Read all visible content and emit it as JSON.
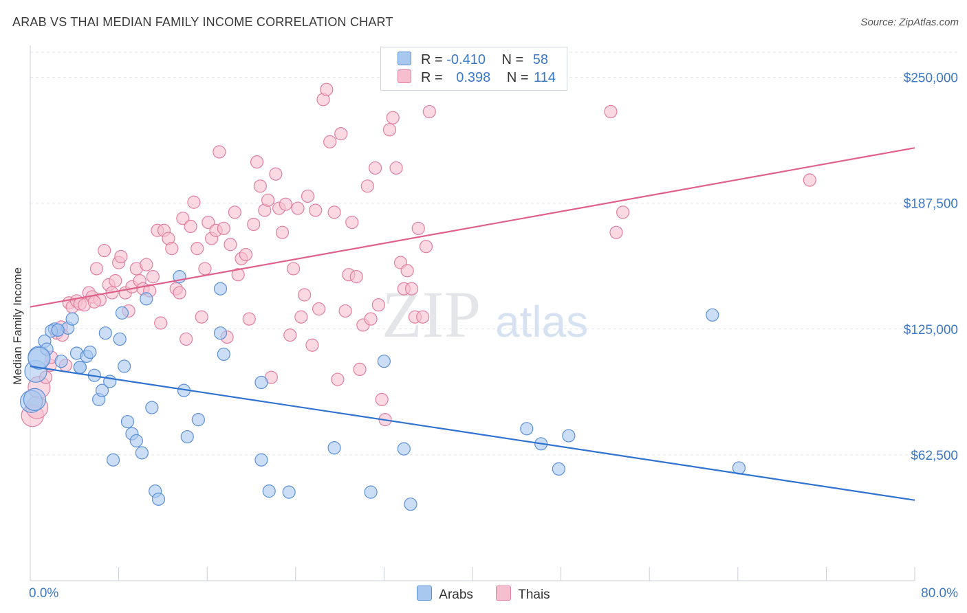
{
  "header": {
    "title": "ARAB VS THAI MEDIAN FAMILY INCOME CORRELATION CHART",
    "source": "Source: ZipAtlas.com"
  },
  "legend": {
    "arabs": {
      "r_label": "R =",
      "r_value": "-0.410",
      "n_label": "N =",
      "n_value": "58"
    },
    "thais": {
      "r_label": "R =",
      "r_value": "0.398",
      "n_label": "N =",
      "n_value": "114"
    }
  },
  "bottom_legend": {
    "arabs": "Arabs",
    "thais": "Thais"
  },
  "watermark": {
    "zip": "ZIP",
    "atlas": "atlas"
  },
  "colors": {
    "arabs_fill": "#a8c8f0",
    "arabs_stroke": "#5b8fd6",
    "arabs_line": "#2f72d0",
    "thais_fill": "#f6bfd0",
    "thais_stroke": "#e07fa0",
    "thais_line": "#e0608c",
    "axis_text": "#3b78c8",
    "grid": "#dde2ea"
  },
  "chart_data": {
    "type": "scatter",
    "title": "ARAB VS THAI MEDIAN FAMILY INCOME CORRELATION CHART",
    "xlabel": "",
    "ylabel": "Median Family Income",
    "xlim": [
      0,
      80
    ],
    "ylim": [
      0,
      262500
    ],
    "x_tick_labels": [
      "0.0%",
      "80.0%"
    ],
    "y_ticks": [
      62500,
      125000,
      187500,
      250000
    ],
    "y_tick_labels": [
      "$62,500",
      "$125,000",
      "$187,500",
      "$250,000"
    ],
    "grid": true,
    "legend_position": "top-center",
    "series": [
      {
        "name": "Arabs",
        "r": -0.41,
        "n": 58,
        "trend": [
          [
            0,
            106500
          ],
          [
            80,
            40000
          ]
        ],
        "points": [
          [
            0.1,
            89000
          ],
          [
            0.5,
            104000
          ],
          [
            0.8,
            111000
          ],
          [
            1.3,
            119000
          ],
          [
            1.5,
            115000
          ],
          [
            2.2,
            125000
          ],
          [
            2.5,
            124500
          ],
          [
            3.4,
            125500
          ],
          [
            1.9,
            124000
          ],
          [
            3.8,
            130000
          ],
          [
            2.8,
            109000
          ],
          [
            4.2,
            113000
          ],
          [
            4.5,
            106000
          ],
          [
            5.1,
            111500
          ],
          [
            5.4,
            113500
          ],
          [
            5.8,
            102000
          ],
          [
            6.2,
            90000
          ],
          [
            6.8,
            123000
          ],
          [
            6.5,
            94500
          ],
          [
            7.2,
            99000
          ],
          [
            7.5,
            60000
          ],
          [
            8.1,
            120000
          ],
          [
            8.3,
            133000
          ],
          [
            8.5,
            106500
          ],
          [
            8.8,
            79000
          ],
          [
            9.2,
            73000
          ],
          [
            9.6,
            69500
          ],
          [
            10.1,
            63500
          ],
          [
            10.5,
            140000
          ],
          [
            11.0,
            86000
          ],
          [
            11.3,
            44500
          ],
          [
            11.6,
            40500
          ],
          [
            13.9,
            94500
          ],
          [
            13.5,
            151000
          ],
          [
            14.2,
            71500
          ],
          [
            15.2,
            80000
          ],
          [
            17.2,
            145000
          ],
          [
            17.2,
            123000
          ],
          [
            17.5,
            112500
          ],
          [
            20.9,
            98500
          ],
          [
            20.9,
            60000
          ],
          [
            21.6,
            44500
          ],
          [
            23.4,
            44000
          ],
          [
            27.5,
            66000
          ],
          [
            30.8,
            44000
          ],
          [
            32.0,
            109000
          ],
          [
            33.8,
            65500
          ],
          [
            34.4,
            38000
          ],
          [
            44.9,
            75500
          ],
          [
            46.2,
            68000
          ],
          [
            47.8,
            55500
          ],
          [
            48.7,
            72000
          ],
          [
            61.7,
            132000
          ],
          [
            64.1,
            56000
          ],
          [
            0.4,
            90000
          ],
          [
            4.5,
            106000
          ],
          [
            2.5,
            124500
          ],
          [
            0.8,
            110500
          ]
        ]
      },
      {
        "name": "Thais",
        "r": 0.398,
        "n": 114,
        "trend": [
          [
            0,
            136000
          ],
          [
            80,
            215000
          ]
        ],
        "points": [
          [
            0.2,
            82000
          ],
          [
            0.8,
            96000
          ],
          [
            1.4,
            101000
          ],
          [
            1.8,
            107000
          ],
          [
            2.4,
            123000
          ],
          [
            2.8,
            126000
          ],
          [
            3.2,
            107000
          ],
          [
            3.5,
            138000
          ],
          [
            3.8,
            136000
          ],
          [
            4.2,
            139000
          ],
          [
            4.5,
            137500
          ],
          [
            4.9,
            137000
          ],
          [
            5.3,
            143000
          ],
          [
            5.6,
            141000
          ],
          [
            6.0,
            155000
          ],
          [
            6.3,
            139500
          ],
          [
            6.7,
            164000
          ],
          [
            7.1,
            147000
          ],
          [
            7.4,
            143000
          ],
          [
            7.7,
            149000
          ],
          [
            8.0,
            158000
          ],
          [
            8.2,
            161000
          ],
          [
            8.6,
            143000
          ],
          [
            8.9,
            134000
          ],
          [
            9.2,
            146000
          ],
          [
            9.6,
            155000
          ],
          [
            9.9,
            149000
          ],
          [
            10.2,
            145000
          ],
          [
            10.5,
            157000
          ],
          [
            10.8,
            144000
          ],
          [
            11.1,
            151000
          ],
          [
            11.5,
            174000
          ],
          [
            11.8,
            128000
          ],
          [
            12.1,
            174000
          ],
          [
            12.5,
            170000
          ],
          [
            12.8,
            165000
          ],
          [
            13.2,
            145000
          ],
          [
            13.5,
            143000
          ],
          [
            13.8,
            180000
          ],
          [
            14.1,
            120000
          ],
          [
            14.5,
            176000
          ],
          [
            14.8,
            188000
          ],
          [
            15.1,
            165000
          ],
          [
            15.5,
            131000
          ],
          [
            15.8,
            155000
          ],
          [
            16.1,
            178000
          ],
          [
            16.4,
            170000
          ],
          [
            16.8,
            174000
          ],
          [
            17.1,
            213000
          ],
          [
            17.5,
            175000
          ],
          [
            17.8,
            121000
          ],
          [
            18.1,
            167000
          ],
          [
            18.5,
            183000
          ],
          [
            18.8,
            152000
          ],
          [
            19.1,
            160000
          ],
          [
            19.5,
            162000
          ],
          [
            19.8,
            130000
          ],
          [
            20.2,
            177000
          ],
          [
            20.5,
            208000
          ],
          [
            20.8,
            196000
          ],
          [
            21.2,
            184000
          ],
          [
            21.5,
            189000
          ],
          [
            21.8,
            101000
          ],
          [
            22.2,
            202000
          ],
          [
            22.5,
            185000
          ],
          [
            22.8,
            173000
          ],
          [
            23.1,
            187000
          ],
          [
            23.5,
            122000
          ],
          [
            23.8,
            155000
          ],
          [
            24.2,
            185000
          ],
          [
            24.5,
            131000
          ],
          [
            24.8,
            142000
          ],
          [
            25.1,
            191000
          ],
          [
            25.5,
            117000
          ],
          [
            25.8,
            184000
          ],
          [
            26.1,
            135000
          ],
          [
            26.5,
            239000
          ],
          [
            26.8,
            244000
          ],
          [
            27.1,
            218000
          ],
          [
            27.5,
            183000
          ],
          [
            27.8,
            100000
          ],
          [
            28.1,
            222000
          ],
          [
            28.5,
            134000
          ],
          [
            28.8,
            152000
          ],
          [
            29.1,
            178000
          ],
          [
            29.5,
            151000
          ],
          [
            29.8,
            105000
          ],
          [
            30.1,
            127000
          ],
          [
            30.5,
            196000
          ],
          [
            30.8,
            130000
          ],
          [
            31.2,
            205000
          ],
          [
            31.5,
            137000
          ],
          [
            31.8,
            90000
          ],
          [
            32.1,
            80000
          ],
          [
            32.5,
            224000
          ],
          [
            32.8,
            230000
          ],
          [
            33.1,
            205000
          ],
          [
            33.5,
            158000
          ],
          [
            33.8,
            145000
          ],
          [
            34.1,
            154000
          ],
          [
            34.5,
            145000
          ],
          [
            34.8,
            131000
          ],
          [
            35.1,
            175000
          ],
          [
            35.5,
            131000
          ],
          [
            35.8,
            166000
          ],
          [
            36.1,
            233000
          ],
          [
            52.5,
            233000
          ],
          [
            53.0,
            173000
          ],
          [
            53.6,
            183000
          ],
          [
            70.5,
            199000
          ],
          [
            0.6,
            86000
          ],
          [
            1.9,
            111000
          ],
          [
            2.9,
            122000
          ],
          [
            5.8,
            138500
          ]
        ]
      }
    ]
  }
}
